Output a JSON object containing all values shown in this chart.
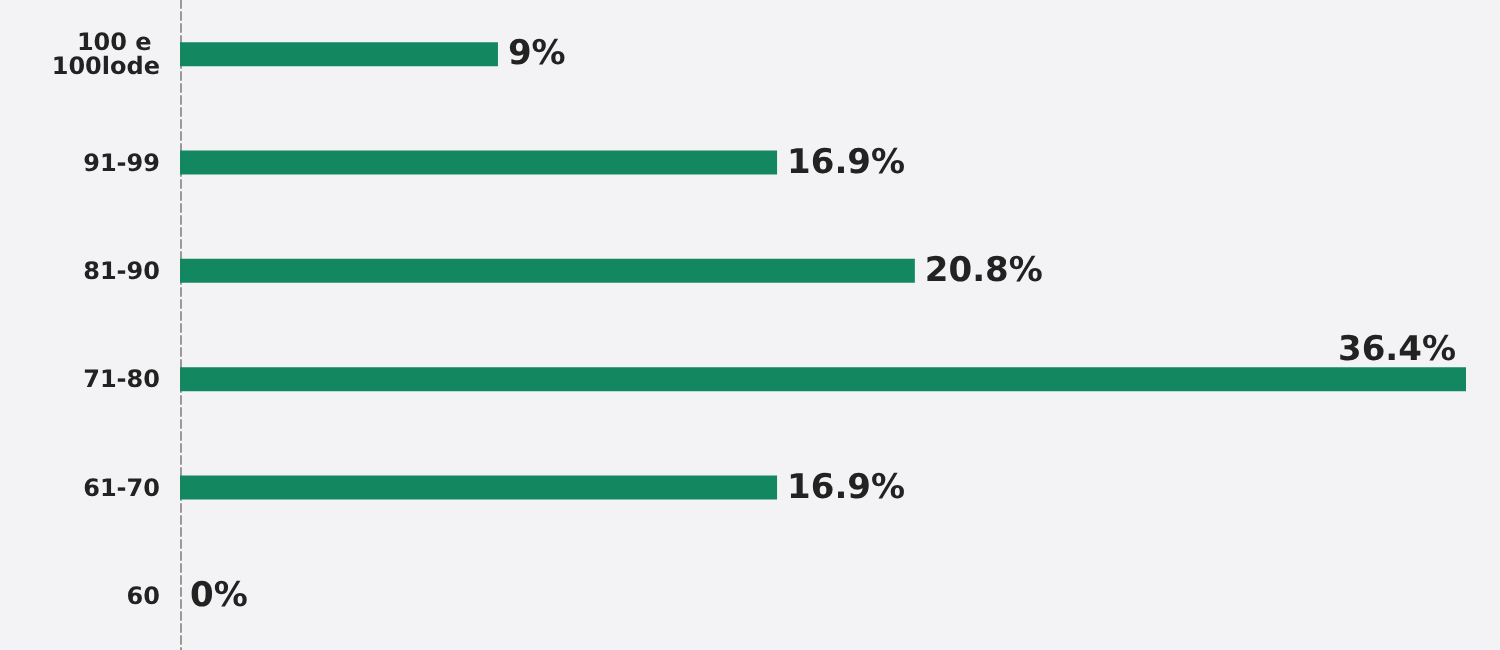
{
  "chart_data": {
    "type": "bar",
    "orientation": "horizontal",
    "categories": [
      "100 e 100lode",
      "91-99",
      "81-90",
      "71-80",
      "61-70",
      "60"
    ],
    "values": [
      9,
      16.9,
      20.8,
      36.4,
      16.9,
      0
    ],
    "value_labels": [
      "9%",
      "16.9%",
      "20.8%",
      "36.4%",
      "16.9%",
      "0%"
    ],
    "color": "#13875f"
  }
}
